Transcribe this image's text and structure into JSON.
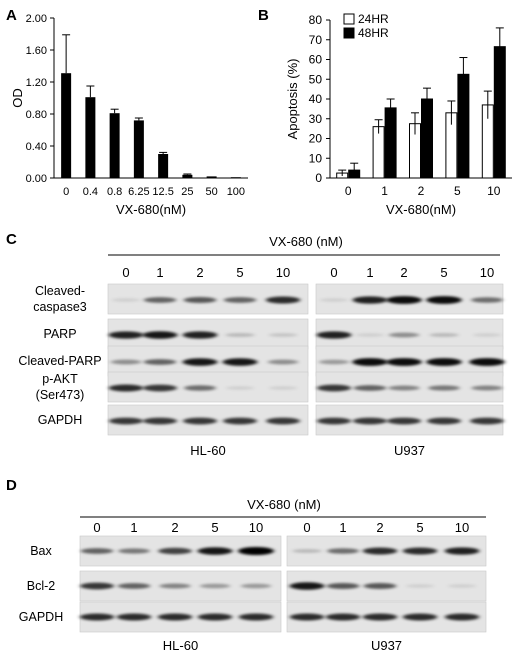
{
  "panels": {
    "a": {
      "letter": "A"
    },
    "b": {
      "letter": "B"
    },
    "c": {
      "letter": "C",
      "treatment": "VX-680 (nM)",
      "doses": [
        "0",
        "1",
        "2",
        "5",
        "10"
      ],
      "rows": [
        "Cleaved-\ncaspase3",
        "PARP",
        "Cleaved-PARP",
        "p-AKT\n(Ser473)",
        "GAPDH"
      ],
      "cells": [
        "HL-60",
        "U937"
      ]
    },
    "d": {
      "letter": "D",
      "treatment": "VX-680 (nM)",
      "doses": [
        "0",
        "1",
        "2",
        "5",
        "10"
      ],
      "rows": [
        "Bax",
        "Bcl-2",
        "GAPDH"
      ],
      "cells": [
        "HL-60",
        "U937"
      ]
    }
  },
  "chart_data": [
    {
      "type": "bar",
      "panel": "A",
      "categories": [
        "0",
        "0.4",
        "0.8",
        "6.25",
        "12.5",
        "25",
        "50",
        "100"
      ],
      "values": [
        1.31,
        1.01,
        0.81,
        0.72,
        0.3,
        0.04,
        0.02,
        0.01
      ],
      "errors": [
        0.48,
        0.14,
        0.05,
        0.03,
        0.02,
        0.01,
        0.0,
        0.0
      ],
      "xlabel": "VX-680(nM)",
      "ylabel": "OD",
      "ylim": [
        0,
        2.0
      ],
      "yticks": [
        "0.00",
        "0.40",
        "0.80",
        "1.20",
        "1.60",
        "2.00"
      ],
      "bar_color": "#000000"
    },
    {
      "type": "bar",
      "panel": "B",
      "categories": [
        "0",
        "1",
        "2",
        "5",
        "10"
      ],
      "series": [
        {
          "name": "24HR",
          "values": [
            2.5,
            26,
            27.5,
            33,
            37
          ],
          "errors": [
            1.5,
            3.5,
            5.5,
            6,
            7
          ],
          "fill": "#ffffff"
        },
        {
          "name": "48HR",
          "values": [
            4,
            35.5,
            40,
            52.5,
            66.5
          ],
          "errors": [
            3.5,
            4.5,
            5.5,
            8.5,
            9.5
          ],
          "fill": "#000000"
        }
      ],
      "xlabel": "VX-680(nM)",
      "ylabel": "Apoptosis (%)",
      "ylim": [
        0,
        80
      ],
      "yticks": [
        "0",
        "10",
        "20",
        "30",
        "40",
        "50",
        "60",
        "70",
        "80"
      ],
      "legend": "top-left"
    }
  ],
  "blots": {
    "c": {
      "hl60": [
        [
          0.05,
          0.55,
          0.6,
          0.55,
          0.8
        ],
        [
          0.85,
          0.9,
          0.85,
          0.15,
          0.1
        ],
        [
          0.35,
          0.55,
          0.9,
          0.9,
          0.35
        ],
        [
          0.8,
          0.75,
          0.5,
          0.05,
          0.05
        ],
        [
          0.75,
          0.75,
          0.75,
          0.75,
          0.75
        ]
      ],
      "u937": [
        [
          0.05,
          0.85,
          0.95,
          0.95,
          0.5
        ],
        [
          0.85,
          0.05,
          0.35,
          0.15,
          0.05
        ],
        [
          0.3,
          0.95,
          0.95,
          0.95,
          0.95
        ],
        [
          0.75,
          0.55,
          0.4,
          0.45,
          0.4
        ],
        [
          0.75,
          0.75,
          0.75,
          0.75,
          0.75
        ]
      ]
    },
    "d": {
      "hl60": [
        [
          0.55,
          0.45,
          0.7,
          0.9,
          1.0
        ],
        [
          0.75,
          0.55,
          0.4,
          0.3,
          0.3
        ],
        [
          0.8,
          0.8,
          0.8,
          0.8,
          0.8
        ]
      ],
      "u937": [
        [
          0.15,
          0.5,
          0.8,
          0.8,
          0.85
        ],
        [
          0.9,
          0.6,
          0.6,
          0.05,
          0.05
        ],
        [
          0.8,
          0.8,
          0.8,
          0.8,
          0.8
        ]
      ]
    }
  }
}
